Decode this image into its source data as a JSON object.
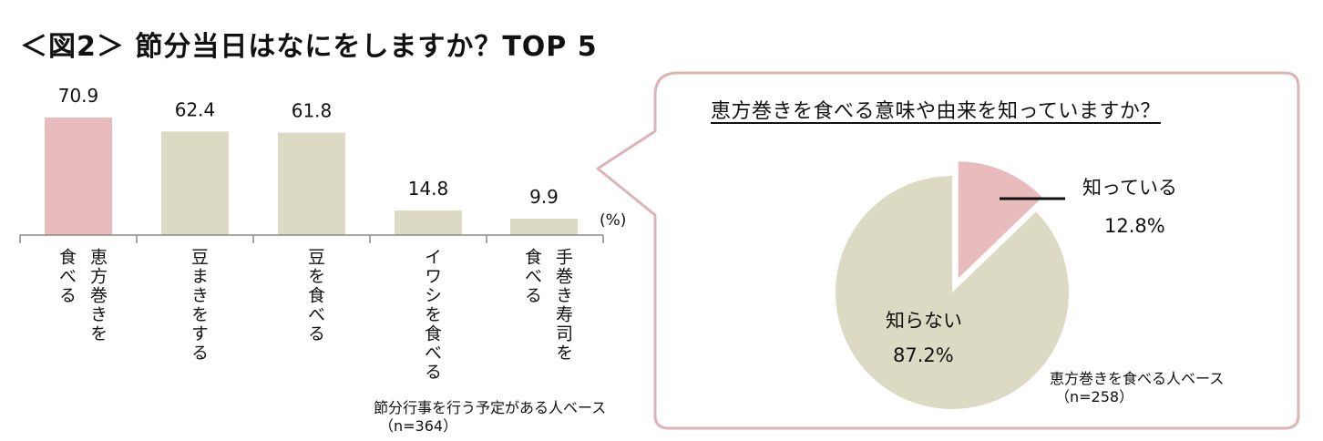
{
  "title": "＜図2＞ 節分当日はなにをしますか？TOP 5",
  "chart_data": [
    {
      "type": "bar",
      "title": "",
      "unit": "(%)",
      "categories": [
        "恵方巻きを食べる",
        "豆まきをする",
        "豆を食べる",
        "イワシを食べる",
        "手巻き寿司を食べる"
      ],
      "category_lines": [
        [
          "恵方巻きを",
          "食べる"
        ],
        [
          "豆まきをする"
        ],
        [
          "豆を食べる"
        ],
        [
          "イワシを食べる"
        ],
        [
          "手巻き寿司を",
          "食べる"
        ]
      ],
      "values": [
        70.9,
        62.4,
        61.8,
        14.8,
        9.9
      ],
      "value_labels": [
        "70.9",
        "62.4",
        "61.8",
        "14.8",
        "9.9"
      ],
      "ylim": [
        0,
        100
      ],
      "colors": [
        "#e8bcbd",
        "#dcdac2",
        "#dcdac2",
        "#dcdac2",
        "#dcdac2"
      ],
      "base_note": [
        "節分行事を行う予定がある人ベース",
        "（n=364）"
      ]
    },
    {
      "type": "pie",
      "title": "恵方巻きを食べる意味や由来を知っていますか？",
      "slices": [
        {
          "label": "知っている",
          "value": 12.8,
          "value_label": "12.8%",
          "color": "#e8bcbd",
          "exploded": true
        },
        {
          "label": "知らない",
          "value": 87.2,
          "value_label": "87.2%",
          "color": "#dcdac2",
          "exploded": false
        }
      ],
      "base_note": [
        "恵方巻きを食べる人ベース",
        "（n=258）"
      ]
    }
  ],
  "colors": {
    "bubble_border": "#dcb3b7",
    "axis": "#888888"
  }
}
